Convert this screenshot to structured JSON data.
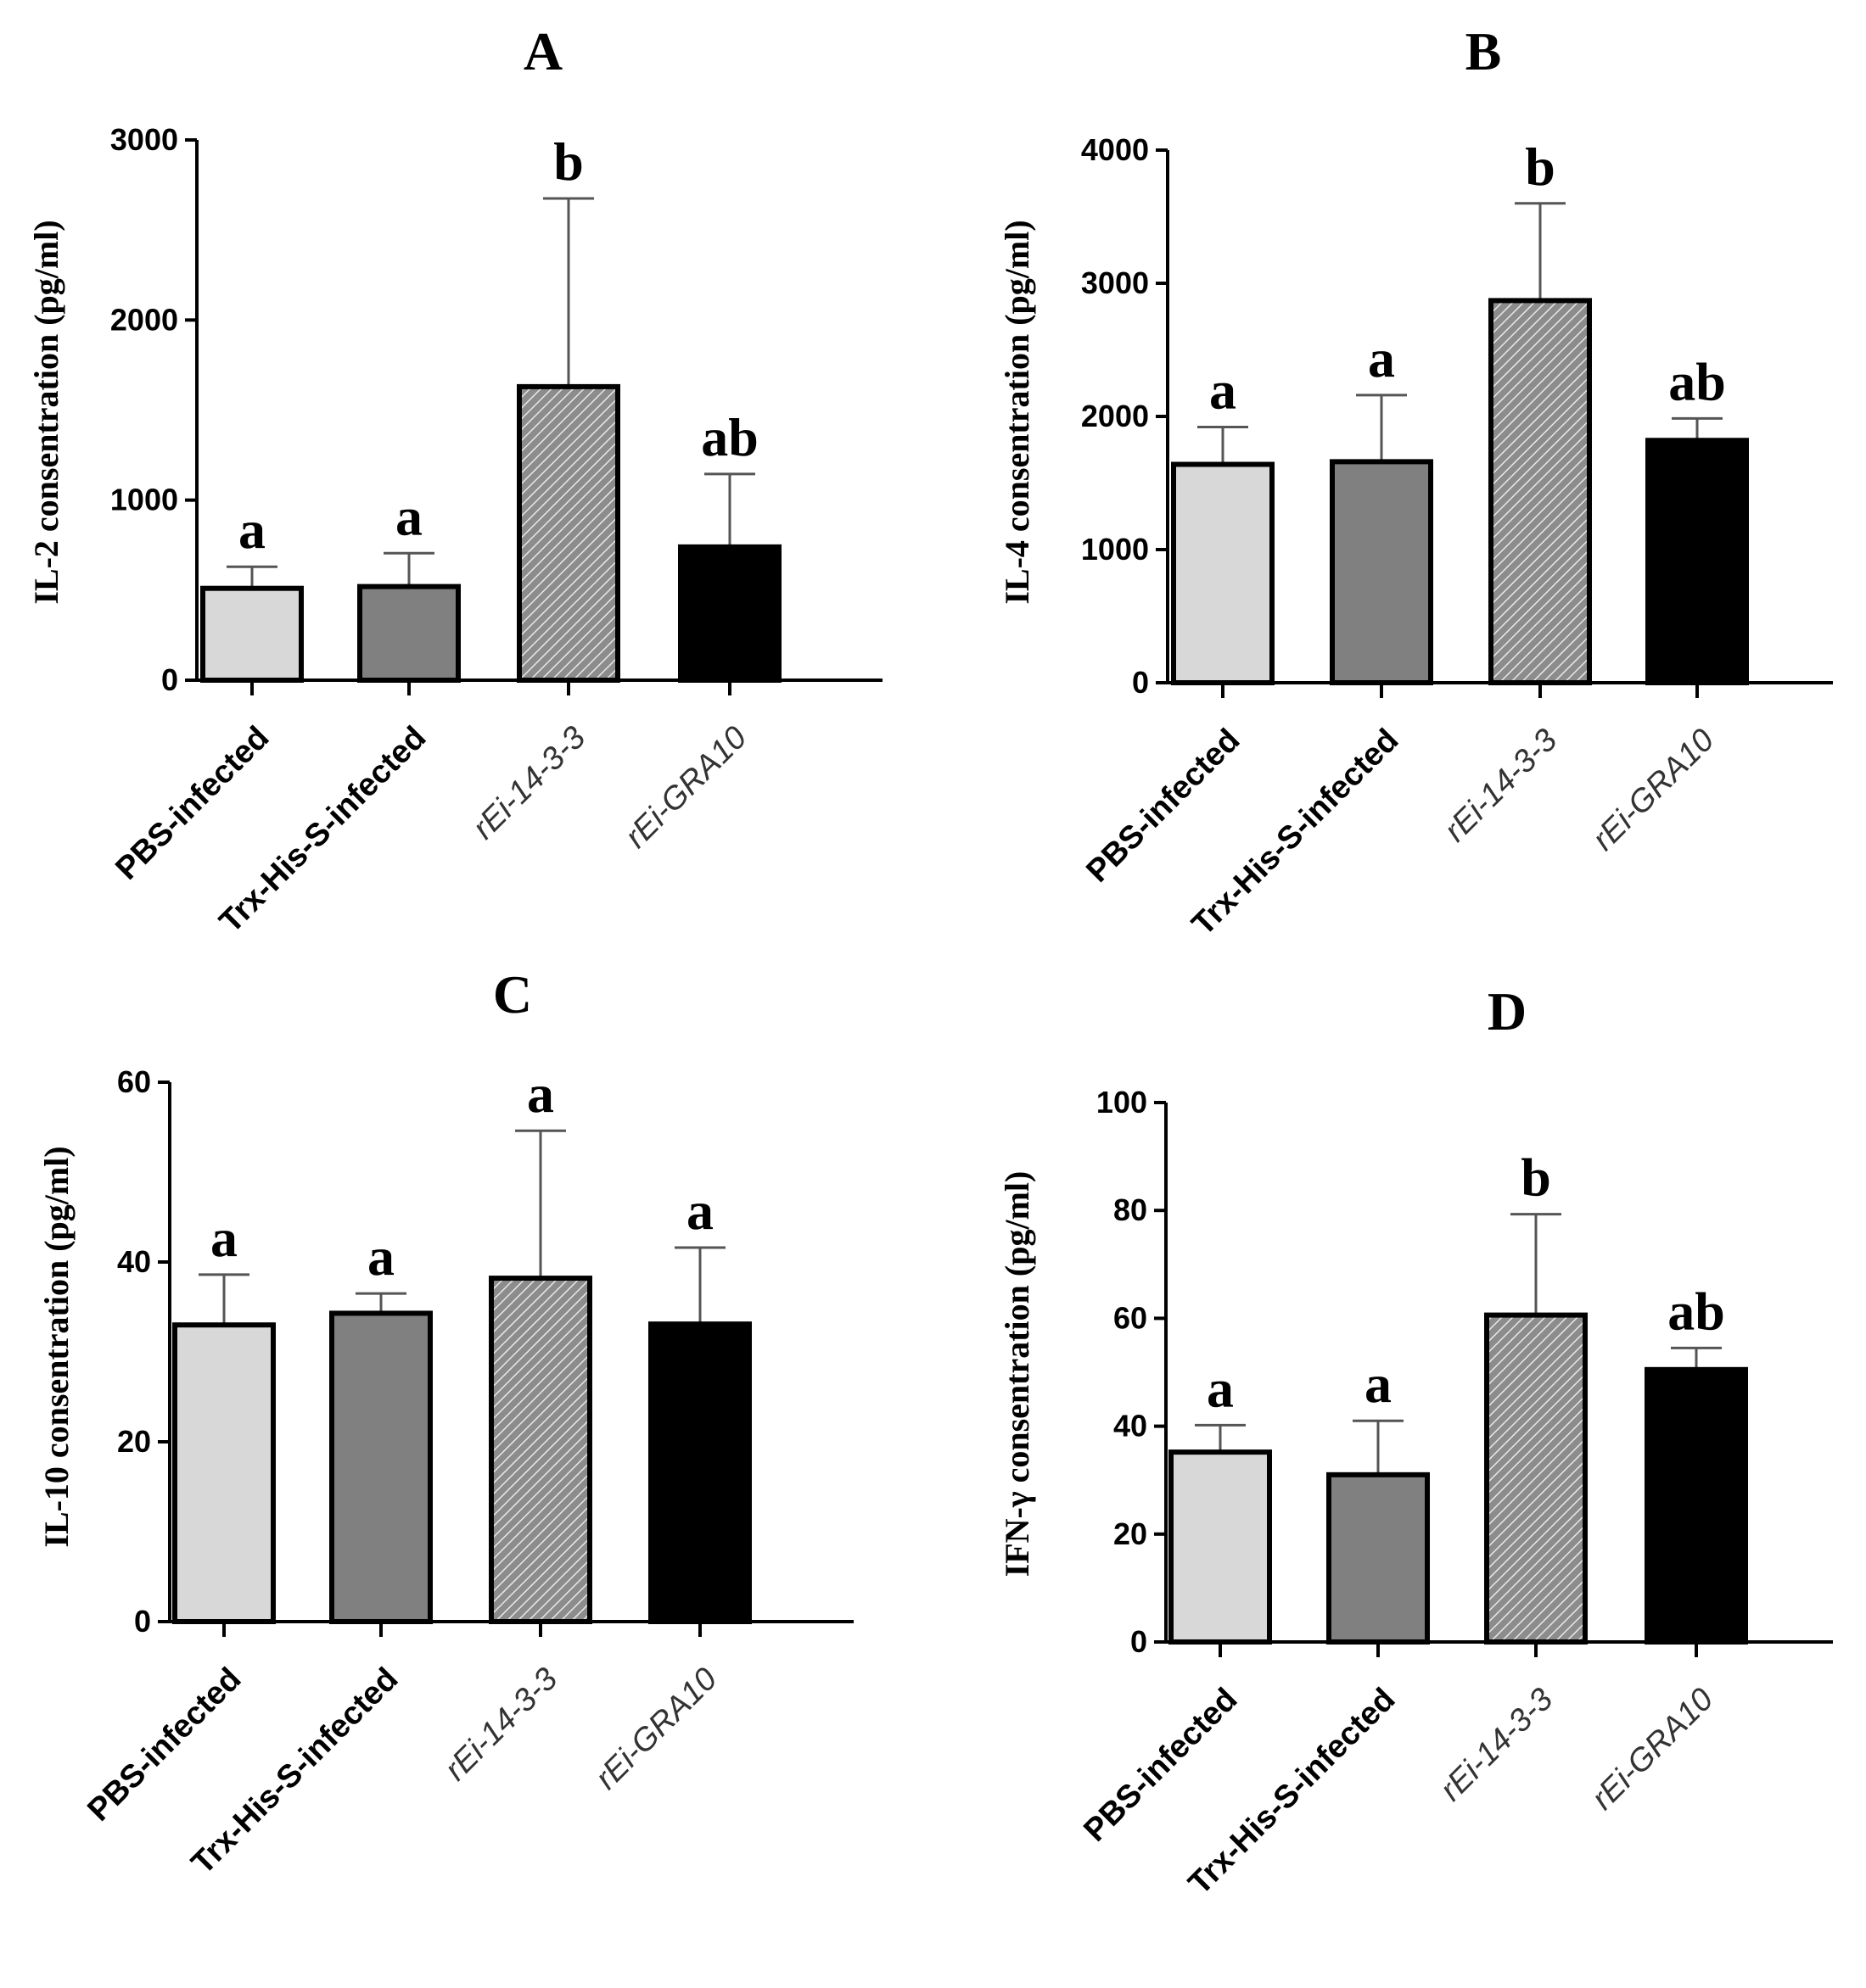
{
  "chart_data": [
    {
      "type": "bar",
      "title": "A",
      "ylabel": "IL-2 consentration (pg/ml)",
      "xlabel": "",
      "categories": [
        "PBS-infected",
        "Trx-His-S-infected",
        "rEi-14-3-3",
        "rEi-GRA10"
      ],
      "values": [
        510,
        520,
        1630,
        740
      ],
      "errors": [
        120,
        185,
        1045,
        405
      ],
      "significance": [
        "a",
        "a",
        "b",
        "ab"
      ],
      "ylim": [
        0,
        3000
      ],
      "yticks": [
        0,
        1000,
        2000,
        3000
      ]
    },
    {
      "type": "bar",
      "title": "B",
      "ylabel": "IL-4 consentration (pg/ml)",
      "xlabel": "",
      "categories": [
        "PBS-infected",
        "Trx-His-S-infected",
        "rEi-14-3-3",
        "rEi-GRA10"
      ],
      "values": [
        1640,
        1660,
        2870,
        1820
      ],
      "errors": [
        280,
        500,
        730,
        165
      ],
      "significance": [
        "a",
        "a",
        "b",
        "ab"
      ],
      "ylim": [
        0,
        4000
      ],
      "yticks": [
        0,
        1000,
        2000,
        3000,
        4000
      ]
    },
    {
      "type": "bar",
      "title": "C",
      "ylabel": "IL-10 consentration (pg/ml)",
      "xlabel": "",
      "categories": [
        "PBS-infected",
        "Trx-His-S-infected",
        "rEi-14-3-3",
        "rEi-GRA10"
      ],
      "values": [
        33,
        34.3,
        38.2,
        33.1
      ],
      "errors": [
        5.6,
        2.2,
        16.4,
        8.5
      ],
      "significance": [
        "a",
        "a",
        "a",
        "a"
      ],
      "ylim": [
        0,
        60
      ],
      "yticks": [
        0,
        20,
        40,
        60
      ]
    },
    {
      "type": "bar",
      "title": "D",
      "ylabel": "IFN-γ consentration (pg/ml)",
      "xlabel": "",
      "categories": [
        "PBS-infected",
        "Trx-His-S-infected",
        "rEi-14-3-3",
        "rEi-GRA10"
      ],
      "values": [
        35.2,
        31,
        60.6,
        50.5
      ],
      "errors": [
        5,
        10,
        18.7,
        4
      ],
      "significance": [
        "a",
        "a",
        "b",
        "ab"
      ],
      "ylim": [
        0,
        100
      ],
      "yticks": [
        0,
        20,
        40,
        60,
        80,
        100
      ]
    }
  ],
  "colors": {
    "pbs": "#d8d8d8",
    "trx": "#808080",
    "hatch_bg": "#8c8c8c",
    "hatch_line": "#e8e8e8",
    "gra": "#000000"
  }
}
